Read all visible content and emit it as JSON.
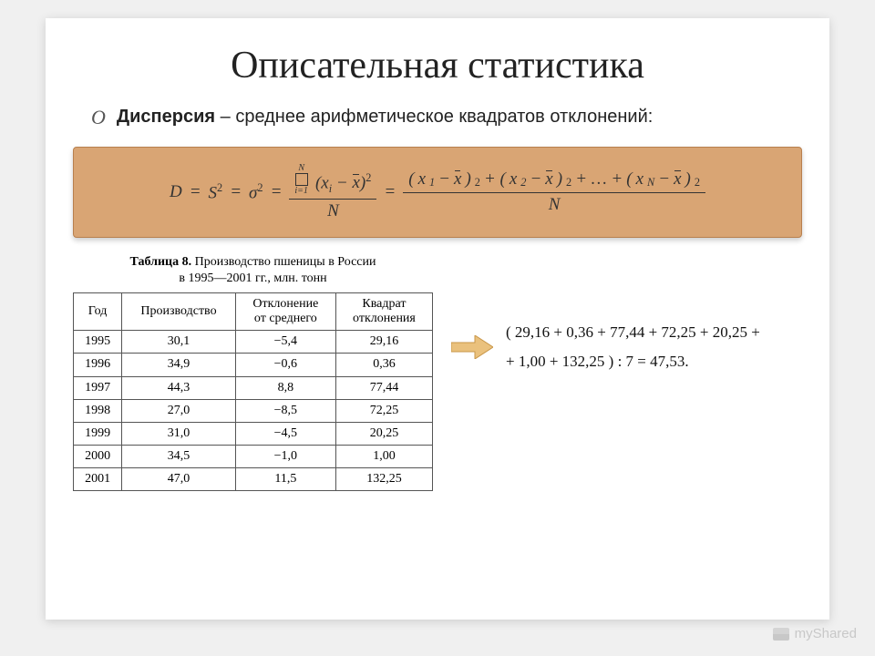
{
  "slide": {
    "title": "Описательная статистика",
    "bullet_marker": "O",
    "term": "Дисперсия",
    "definition": " – среднее арифметическое квадратов отклонений:"
  },
  "formula_box": {
    "background_color": "#d9a574",
    "border_color": "#b8804e",
    "lhs1": "D",
    "lhs2": "S",
    "lhs3": "σ",
    "sum_upper": "N",
    "sum_lower": "i=1",
    "var": "x",
    "mean_var": "x",
    "exp": "2",
    "denom": "N",
    "ellipsis": "+ … +"
  },
  "table": {
    "label": "Таблица 8.",
    "caption_line1": "Производство пшеницы в России",
    "caption_line2": "в 1995—2001 гг., млн. тонн",
    "columns": [
      "Год",
      "Производство",
      "Отклонение от среднего",
      "Квадрат отклонения"
    ],
    "rows": [
      [
        "1995",
        "30,1",
        "−5,4",
        "29,16"
      ],
      [
        "1996",
        "34,9",
        "−0,6",
        "0,36"
      ],
      [
        "1997",
        "44,3",
        "8,8",
        "77,44"
      ],
      [
        "1998",
        "27,0",
        "−8,5",
        "72,25"
      ],
      [
        "1999",
        "31,0",
        "−4,5",
        "20,25"
      ],
      [
        "2000",
        "34,5",
        "−1,0",
        "1,00"
      ],
      [
        "2001",
        "47,0",
        "11,5",
        "132,25"
      ]
    ]
  },
  "arrow": {
    "fill": "#eac17d",
    "stroke": "#c89648"
  },
  "calculation": {
    "line1": "( 29,16 + 0,36 + 77,44 + 72,25 + 20,25 +",
    "line2": "+ 1,00 + 132,25 ) : 7 = 47,53."
  },
  "watermark": "myShared"
}
